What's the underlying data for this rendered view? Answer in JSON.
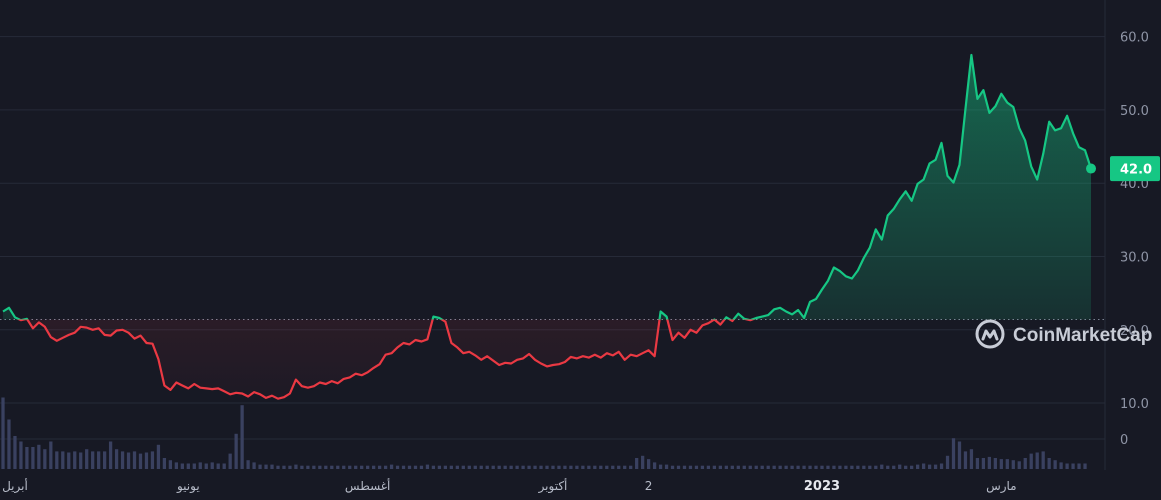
{
  "chart_data": {
    "type": "line",
    "y_ticks": [
      "60.0",
      "50.0",
      "40.0",
      "30.0",
      "20.0",
      "10.0"
    ],
    "y_tick_values": [
      60,
      50,
      40,
      30,
      20,
      10
    ],
    "ylim": [
      5,
      65
    ],
    "volume_tick": "0",
    "x_ticks": [
      {
        "label": "أبريل",
        "index": 2,
        "bold": false
      },
      {
        "label": "يونيو",
        "index": 31,
        "bold": false
      },
      {
        "label": "أغسطس",
        "index": 61,
        "bold": false
      },
      {
        "label": "أكتوبر",
        "index": 92,
        "bold": false
      },
      {
        "label": "2",
        "index": 108,
        "bold": false
      },
      {
        "label": "2023",
        "index": 137,
        "bold": true
      },
      {
        "label": "مارس",
        "index": 167,
        "bold": false
      }
    ],
    "baseline": 21.4,
    "current_value": 42.0,
    "current_label": "42.0",
    "colors": {
      "up": "#16c784",
      "down": "#ea3943",
      "badge": "#16c784"
    },
    "series": [
      {
        "values": [
          22.5,
          23.0,
          21.7,
          21.3,
          21.5,
          20.2,
          21.0,
          20.4,
          19.0,
          18.5,
          18.9,
          19.3,
          19.6,
          20.4,
          20.3,
          20.0,
          20.2,
          19.3,
          19.2,
          19.9,
          20.0,
          19.6,
          18.8,
          19.2,
          18.2,
          18.1,
          16.0,
          12.4,
          11.8,
          12.8,
          12.4,
          12.0,
          12.6,
          12.1,
          12.0,
          11.9,
          12.0,
          11.6,
          11.2,
          11.4,
          11.3,
          10.9,
          11.5,
          11.2,
          10.7,
          11.0,
          10.6,
          10.8,
          11.3,
          13.2,
          12.3,
          12.1,
          12.3,
          12.8,
          12.6,
          13.0,
          12.7,
          13.3,
          13.5,
          14.0,
          13.8,
          14.2,
          14.8,
          15.3,
          16.6,
          16.8,
          17.6,
          18.2,
          18.0,
          18.6,
          18.4,
          18.7,
          21.8,
          21.6,
          21.1,
          18.2,
          17.6,
          16.8,
          17.0,
          16.5,
          15.9,
          16.4,
          15.8,
          15.2,
          15.5,
          15.4,
          15.9,
          16.1,
          16.7,
          15.9,
          15.4,
          15.0,
          15.2,
          15.3,
          15.6,
          16.3,
          16.1,
          16.4,
          16.2,
          16.6,
          16.2,
          16.8,
          16.5,
          17.0,
          15.9,
          16.6,
          16.4,
          16.8,
          17.2,
          16.4,
          22.5,
          21.8,
          18.6,
          19.6,
          18.9,
          20.0,
          19.6,
          20.6,
          20.9,
          21.4,
          20.7,
          21.7,
          21.2,
          22.2,
          21.5,
          21.3,
          21.6,
          21.8,
          22.0,
          22.8,
          23.0,
          22.5,
          22.1,
          22.7,
          21.6,
          23.8,
          24.2,
          25.5,
          26.7,
          28.5,
          28.0,
          27.3,
          27.0,
          28.1,
          29.8,
          31.2,
          33.7,
          32.3,
          35.6,
          36.5,
          37.8,
          38.9,
          37.6,
          39.9,
          40.5,
          42.7,
          43.2,
          45.5,
          41.0,
          40.1,
          42.5,
          50.2,
          57.5,
          51.5,
          52.7,
          49.6,
          50.5,
          52.2,
          51.0,
          50.4,
          47.5,
          45.8,
          42.3,
          40.5,
          44.0,
          48.4,
          47.2,
          47.5,
          49.2,
          46.8,
          44.9,
          44.5,
          42.0
        ]
      },
      {
        "name": "volume",
        "values": [
          6.5,
          4.5,
          3,
          2.5,
          2,
          2,
          2.2,
          1.8,
          2.5,
          1.6,
          1.6,
          1.5,
          1.6,
          1.5,
          1.8,
          1.6,
          1.6,
          1.6,
          2.5,
          1.8,
          1.6,
          1.5,
          1.6,
          1.4,
          1.5,
          1.6,
          2.2,
          1.0,
          0.8,
          0.6,
          0.5,
          0.5,
          0.5,
          0.6,
          0.5,
          0.6,
          0.5,
          0.5,
          1.4,
          3.2,
          5.8,
          0.8,
          0.6,
          0.4,
          0.4,
          0.4,
          0.3,
          0.3,
          0.3,
          0.4,
          0.3,
          0.3,
          0.3,
          0.3,
          0.3,
          0.3,
          0.3,
          0.3,
          0.3,
          0.3,
          0.3,
          0.3,
          0.3,
          0.3,
          0.3,
          0.4,
          0.3,
          0.3,
          0.3,
          0.3,
          0.3,
          0.4,
          0.3,
          0.3,
          0.3,
          0.3,
          0.3,
          0.3,
          0.3,
          0.3,
          0.3,
          0.3,
          0.3,
          0.3,
          0.3,
          0.3,
          0.3,
          0.3,
          0.3,
          0.3,
          0.3,
          0.3,
          0.3,
          0.3,
          0.3,
          0.3,
          0.3,
          0.3,
          0.3,
          0.3,
          0.3,
          0.3,
          0.3,
          0.3,
          0.3,
          0.3,
          1.0,
          1.2,
          0.9,
          0.6,
          0.4,
          0.4,
          0.3,
          0.3,
          0.3,
          0.3,
          0.3,
          0.3,
          0.3,
          0.3,
          0.3,
          0.3,
          0.3,
          0.3,
          0.3,
          0.3,
          0.3,
          0.3,
          0.3,
          0.3,
          0.3,
          0.3,
          0.3,
          0.3,
          0.3,
          0.3,
          0.3,
          0.3,
          0.3,
          0.3,
          0.3,
          0.3,
          0.3,
          0.3,
          0.3,
          0.3,
          0.3,
          0.4,
          0.3,
          0.3,
          0.4,
          0.3,
          0.3,
          0.4,
          0.5,
          0.4,
          0.4,
          0.5,
          1.2,
          2.8,
          2.5,
          1.6,
          1.8,
          1.0,
          1.0,
          1.1,
          1.0,
          0.9,
          0.9,
          0.8,
          0.7,
          1.0,
          1.4,
          1.5,
          1.6,
          1.0,
          0.8,
          0.6,
          0.5,
          0.5,
          0.5,
          0.5
        ]
      }
    ]
  },
  "brand": {
    "name": "CoinMarketCap",
    "icon": "coinmarketcap-logo-icon"
  }
}
